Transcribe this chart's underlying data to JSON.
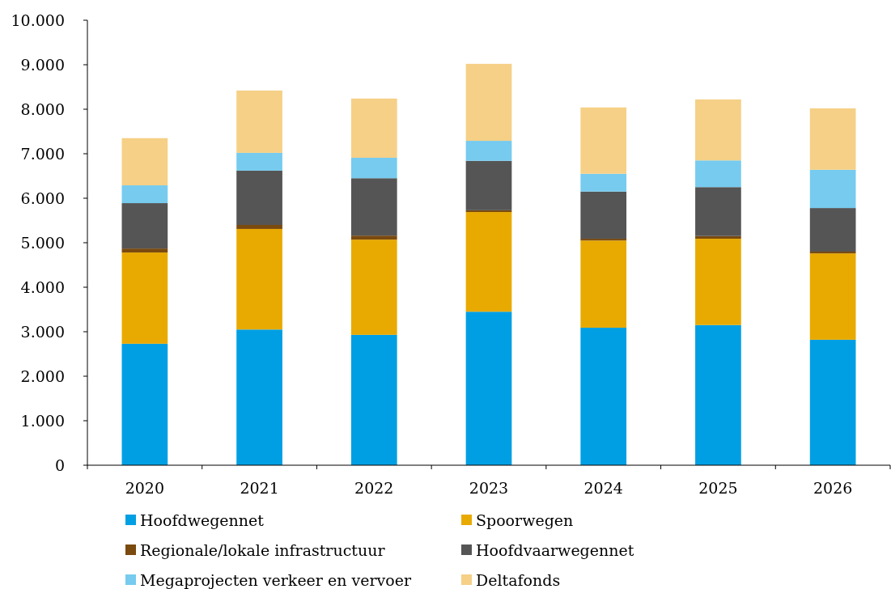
{
  "chart_data": {
    "type": "bar",
    "stacked": true,
    "categories": [
      "2020",
      "2021",
      "2022",
      "2023",
      "2024",
      "2025",
      "2026"
    ],
    "series": [
      {
        "name": "Hoofdwegennet",
        "color": "#009fe3",
        "values": [
          2730,
          3050,
          2930,
          3450,
          3090,
          3150,
          2820
        ]
      },
      {
        "name": "Spoorwegen",
        "color": "#e8aa00",
        "values": [
          2050,
          2260,
          2140,
          2240,
          1960,
          1940,
          1940
        ]
      },
      {
        "name": "Regionale/lokale infrastructuur",
        "color": "#7a4a0f",
        "values": [
          90,
          90,
          90,
          40,
          40,
          60,
          40
        ]
      },
      {
        "name": "Hoofdvaarwegennet",
        "color": "#555555",
        "values": [
          1020,
          1220,
          1290,
          1110,
          1060,
          1100,
          980
        ]
      },
      {
        "name": "Megaprojecten verkeer en vervoer",
        "color": "#76cbef",
        "values": [
          400,
          400,
          460,
          450,
          400,
          600,
          860
        ]
      },
      {
        "name": "Deltafonds",
        "color": "#f5d086",
        "values": [
          1060,
          1400,
          1330,
          1730,
          1490,
          1370,
          1380
        ]
      }
    ],
    "ylim": [
      0,
      10000
    ],
    "yticks": [
      0,
      {
        "value": 1000,
        "label": "1.000"
      },
      {
        "value": 2000,
        "label": "2.000"
      },
      {
        "value": 3000,
        "label": "3.000"
      },
      {
        "value": 4000,
        "label": "4.000"
      },
      {
        "value": 5000,
        "label": "5.000"
      },
      {
        "value": 6000,
        "label": "6.000"
      },
      {
        "value": 7000,
        "label": "7.000"
      },
      {
        "value": 8000,
        "label": "8.000"
      },
      {
        "value": 9000,
        "label": "9.000"
      },
      {
        "value": 10000,
        "label": "10.000"
      }
    ],
    "grid": false,
    "legend": "bottom"
  }
}
